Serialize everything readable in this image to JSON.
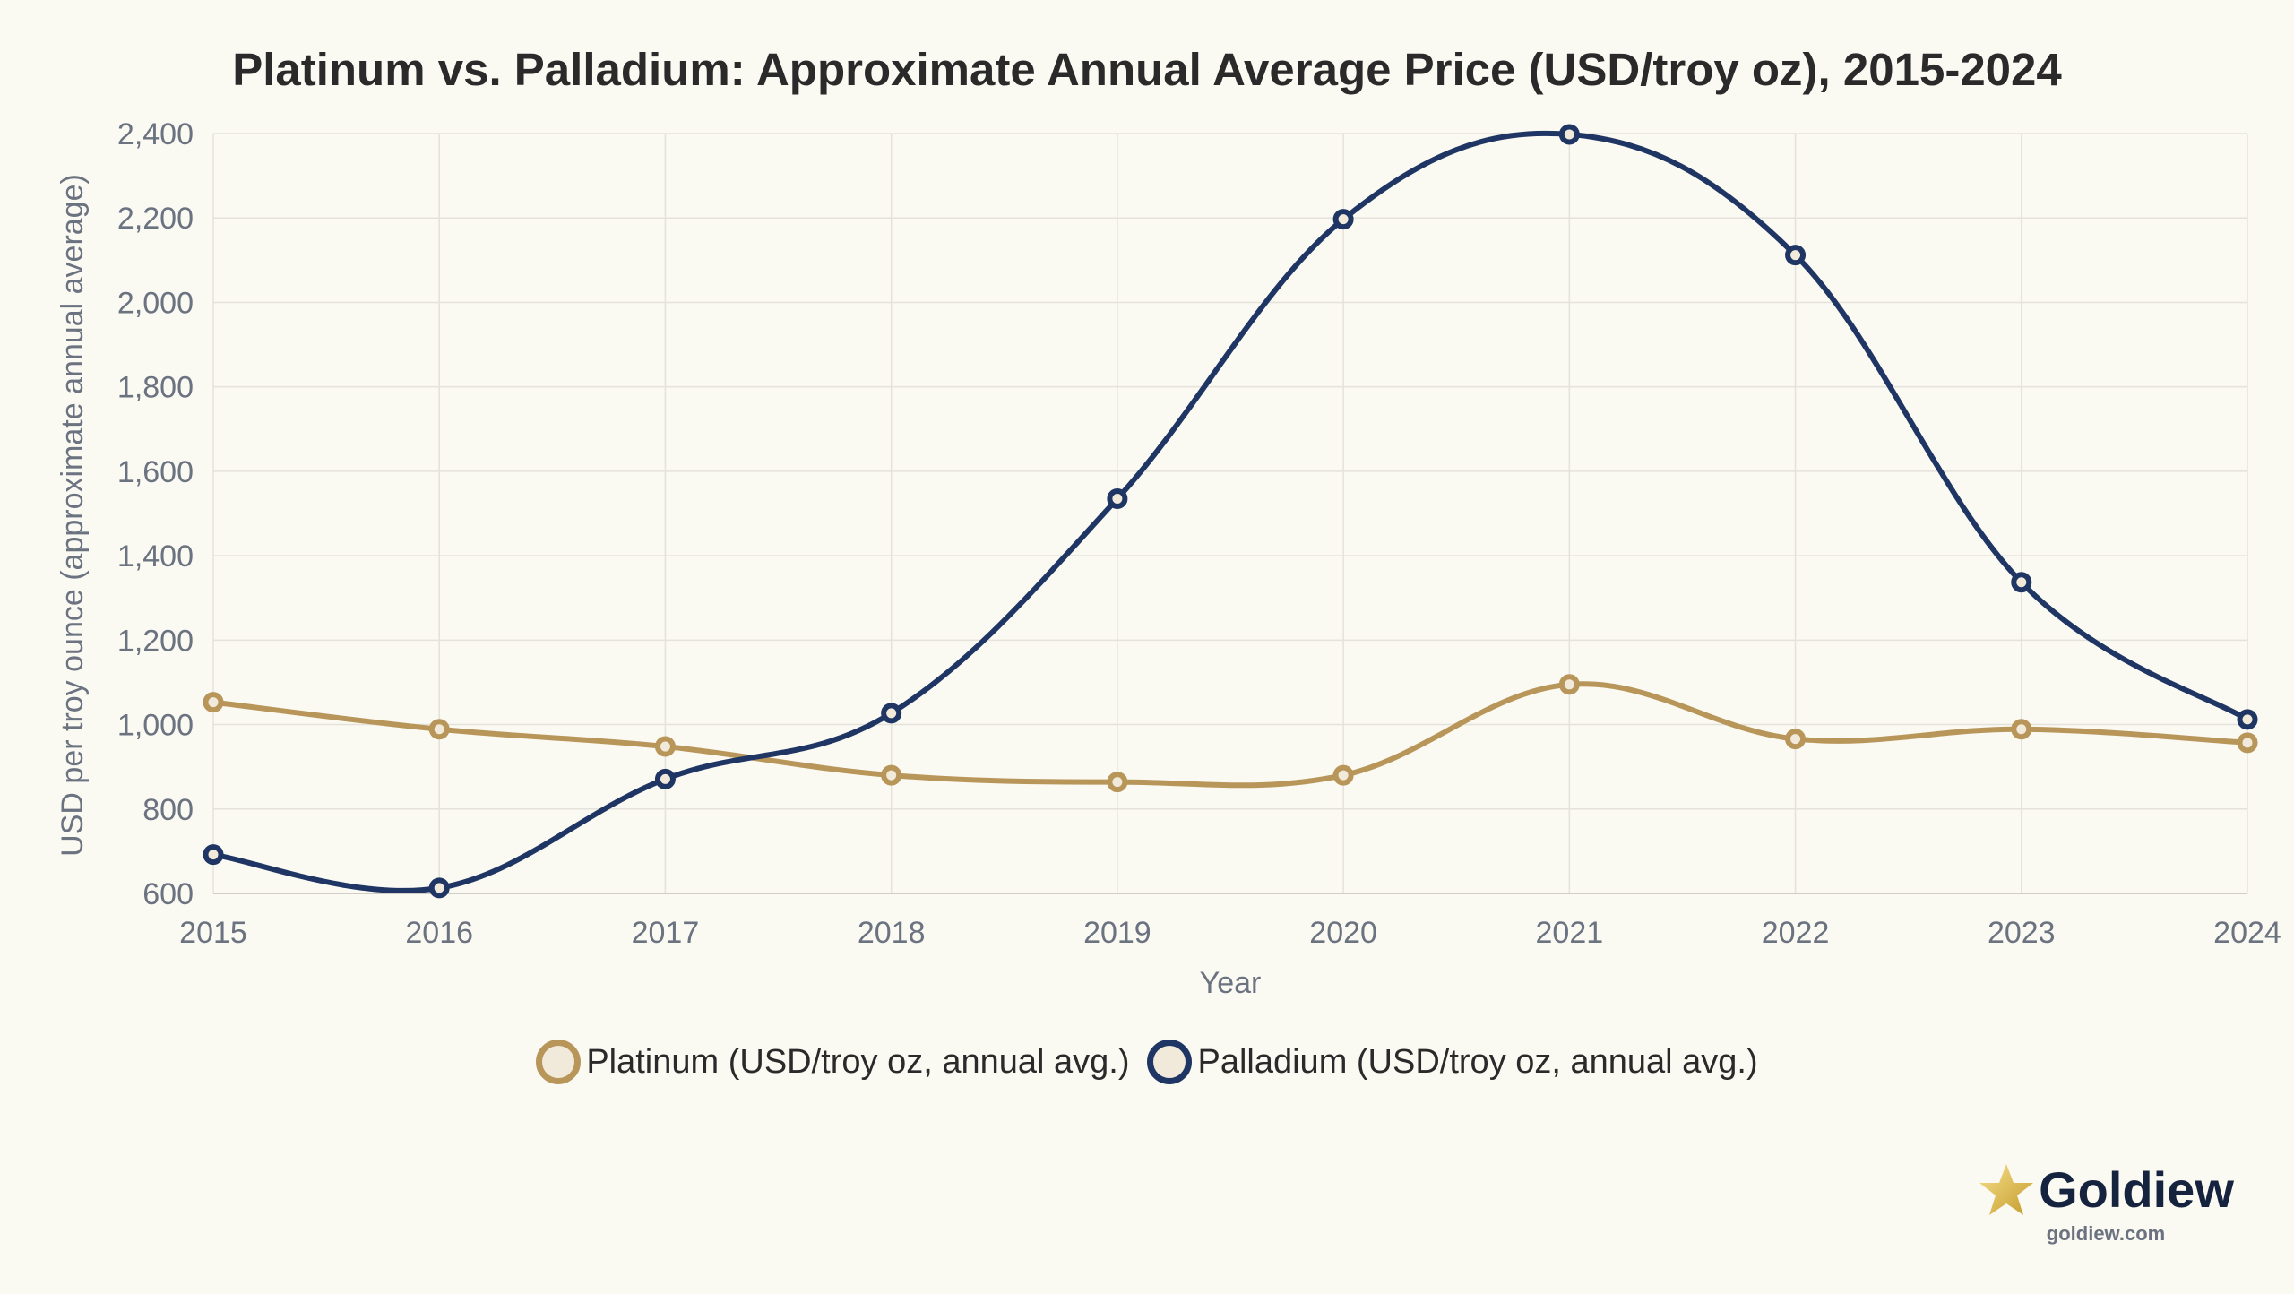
{
  "title": "Platinum vs. Palladium: Approximate Annual Average Price (USD/troy oz), 2015-2024",
  "chart_data": {
    "type": "line",
    "title": "Platinum vs. Palladium: Approximate Annual Average Price (USD/troy oz), 2015-2024",
    "xlabel": "Year",
    "ylabel": "USD per troy ounce (approximate annual average)",
    "x": [
      2015,
      2016,
      2017,
      2018,
      2019,
      2020,
      2021,
      2022,
      2023,
      2024
    ],
    "x_tick_labels": [
      "2015",
      "2016",
      "2017",
      "2018",
      "2019",
      "2020",
      "2021",
      "2022",
      "2023",
      "2024"
    ],
    "xlim": [
      2015,
      2024
    ],
    "ylim": [
      600,
      2400
    ],
    "y_ticks": [
      600,
      800,
      1000,
      1200,
      1400,
      1600,
      1800,
      2000,
      2200,
      2400
    ],
    "y_tick_labels": [
      "600",
      "800",
      "1,000",
      "1,200",
      "1,400",
      "1,600",
      "1,800",
      "2,000",
      "2,200",
      "2,400"
    ],
    "grid": true,
    "legend_position": "bottom-center",
    "series": [
      {
        "name": "Platinum (USD/troy oz, annual avg.)",
        "color": "#b8965a",
        "values": [
          1053,
          989,
          948,
          880,
          864,
          880,
          1095,
          966,
          989,
          957
        ]
      },
      {
        "name": "Palladium (USD/troy oz, annual avg.)",
        "color": "#1f3564",
        "values": [
          692,
          613,
          871,
          1027,
          1535,
          2197,
          2398,
          2112,
          1337,
          1012
        ]
      }
    ]
  },
  "logo": {
    "star_icon": "star-icon",
    "name": "Goldiew",
    "url": "goldiew.com"
  }
}
